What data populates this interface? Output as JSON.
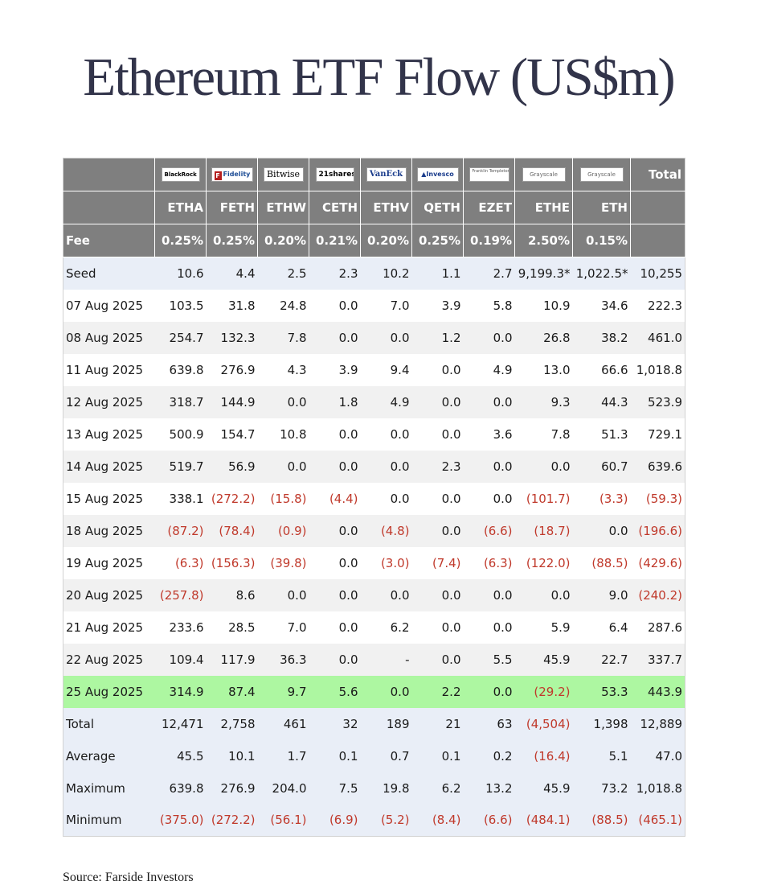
{
  "title": "Ethereum ETF Flow (US$m)",
  "source": "Source: Farside Investors",
  "chart_data": {
    "type": "table",
    "title": "Ethereum ETF Flow (US$m)",
    "issuers": [
      "BlackRock",
      "Fidelity",
      "Bitwise",
      "21shares",
      "VanEck",
      "Invesco",
      "Franklin Templeton",
      "Grayscale",
      "Grayscale"
    ],
    "total_label": "Total",
    "tickers": [
      "ETHA",
      "FETH",
      "ETHW",
      "CETH",
      "ETHV",
      "QETH",
      "EZET",
      "ETHE",
      "ETH"
    ],
    "fee": {
      "label": "Fee",
      "values": [
        "0.25%",
        "0.25%",
        "0.20%",
        "0.21%",
        "0.20%",
        "0.25%",
        "0.19%",
        "2.50%",
        "0.15%",
        ""
      ]
    },
    "rows": [
      {
        "label": "Seed",
        "values": [
          "10.6",
          "4.4",
          "2.5",
          "2.3",
          "10.2",
          "1.1",
          "2.7",
          "9,199.3*",
          "1,022.5*",
          "10,255"
        ]
      },
      {
        "label": "07 Aug 2025",
        "values": [
          "103.5",
          "31.8",
          "24.8",
          "0.0",
          "7.0",
          "3.9",
          "5.8",
          "10.9",
          "34.6",
          "222.3"
        ]
      },
      {
        "label": "08 Aug 2025",
        "values": [
          "254.7",
          "132.3",
          "7.8",
          "0.0",
          "0.0",
          "1.2",
          "0.0",
          "26.8",
          "38.2",
          "461.0"
        ]
      },
      {
        "label": "11 Aug 2025",
        "values": [
          "639.8",
          "276.9",
          "4.3",
          "3.9",
          "9.4",
          "0.0",
          "4.9",
          "13.0",
          "66.6",
          "1,018.8"
        ]
      },
      {
        "label": "12 Aug 2025",
        "values": [
          "318.7",
          "144.9",
          "0.0",
          "1.8",
          "4.9",
          "0.0",
          "0.0",
          "9.3",
          "44.3",
          "523.9"
        ]
      },
      {
        "label": "13 Aug 2025",
        "values": [
          "500.9",
          "154.7",
          "10.8",
          "0.0",
          "0.0",
          "0.0",
          "3.6",
          "7.8",
          "51.3",
          "729.1"
        ]
      },
      {
        "label": "14 Aug 2025",
        "values": [
          "519.7",
          "56.9",
          "0.0",
          "0.0",
          "0.0",
          "2.3",
          "0.0",
          "0.0",
          "60.7",
          "639.6"
        ]
      },
      {
        "label": "15 Aug 2025",
        "values": [
          "338.1",
          "(272.2)",
          "(15.8)",
          "(4.4)",
          "0.0",
          "0.0",
          "0.0",
          "(101.7)",
          "(3.3)",
          "(59.3)"
        ]
      },
      {
        "label": "18 Aug 2025",
        "values": [
          "(87.2)",
          "(78.4)",
          "(0.9)",
          "0.0",
          "(4.8)",
          "0.0",
          "(6.6)",
          "(18.7)",
          "0.0",
          "(196.6)"
        ]
      },
      {
        "label": "19 Aug 2025",
        "values": [
          "(6.3)",
          "(156.3)",
          "(39.8)",
          "0.0",
          "(3.0)",
          "(7.4)",
          "(6.3)",
          "(122.0)",
          "(88.5)",
          "(429.6)"
        ]
      },
      {
        "label": "20 Aug 2025",
        "values": [
          "(257.8)",
          "8.6",
          "0.0",
          "0.0",
          "0.0",
          "0.0",
          "0.0",
          "0.0",
          "9.0",
          "(240.2)"
        ]
      },
      {
        "label": "21 Aug 2025",
        "values": [
          "233.6",
          "28.5",
          "7.0",
          "0.0",
          "6.2",
          "0.0",
          "0.0",
          "5.9",
          "6.4",
          "287.6"
        ]
      },
      {
        "label": "22 Aug 2025",
        "values": [
          "109.4",
          "117.9",
          "36.3",
          "0.0",
          "-",
          "0.0",
          "5.5",
          "45.9",
          "22.7",
          "337.7"
        ]
      },
      {
        "label": "25 Aug 2025",
        "values": [
          "314.9",
          "87.4",
          "9.7",
          "5.6",
          "0.0",
          "2.2",
          "0.0",
          "(29.2)",
          "53.3",
          "443.9"
        ]
      }
    ],
    "summary": [
      {
        "label": "Total",
        "values": [
          "12,471",
          "2,758",
          "461",
          "32",
          "189",
          "21",
          "63",
          "(4,504)",
          "1,398",
          "12,889"
        ]
      },
      {
        "label": "Average",
        "values": [
          "45.5",
          "10.1",
          "1.7",
          "0.1",
          "0.7",
          "0.1",
          "0.2",
          "(16.4)",
          "5.1",
          "47.0"
        ]
      },
      {
        "label": "Maximum",
        "values": [
          "639.8",
          "276.9",
          "204.0",
          "7.5",
          "19.8",
          "6.2",
          "13.2",
          "45.9",
          "73.2",
          "1,018.8"
        ]
      },
      {
        "label": "Minimum",
        "values": [
          "(375.0)",
          "(272.2)",
          "(56.1)",
          "(6.9)",
          "(5.2)",
          "(8.4)",
          "(6.6)",
          "(484.1)",
          "(88.5)",
          "(465.1)"
        ]
      }
    ],
    "colors": {
      "header_bg": "#7f7f7f",
      "seed_and_summary_bg": "#e9eef7",
      "alt_row_bg": "#f1f1f1",
      "highlight_row_bg": "#adf7a1",
      "negative_text": "#c0392b"
    },
    "highlighted_row": "25 Aug 2025"
  }
}
